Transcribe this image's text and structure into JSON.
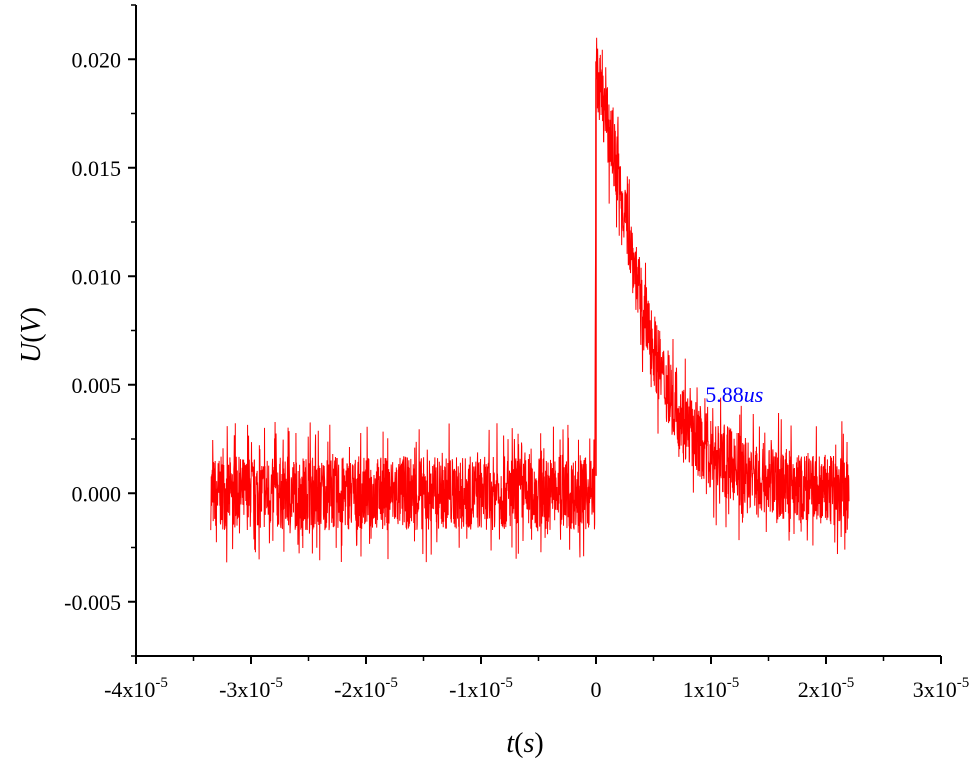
{
  "chart_data": {
    "type": "line",
    "title": "",
    "xlabel": {
      "var": "t",
      "unit": "s"
    },
    "ylabel": {
      "var": "U",
      "unit": "V"
    },
    "xlim": [
      -4e-05,
      3e-05
    ],
    "ylim": [
      -0.0075,
      0.0225
    ],
    "grid": false,
    "legend": "none",
    "x_ticks": [
      {
        "mantissa": "-4",
        "exp": "-5",
        "value": -4e-05
      },
      {
        "mantissa": "-3",
        "exp": "-5",
        "value": -3e-05
      },
      {
        "mantissa": "-2",
        "exp": "-5",
        "value": -2e-05
      },
      {
        "mantissa": "-1",
        "exp": "-5",
        "value": -1e-05
      },
      {
        "mantissa": "0",
        "exp": "",
        "value": 0
      },
      {
        "mantissa": "1",
        "exp": "-5",
        "value": 1e-05
      },
      {
        "mantissa": "2",
        "exp": "-5",
        "value": 2e-05
      },
      {
        "mantissa": "3",
        "exp": "-5",
        "value": 3e-05
      }
    ],
    "y_ticks": [
      {
        "label": "0.020",
        "value": 0.02
      },
      {
        "label": "0.015",
        "value": 0.015
      },
      {
        "label": "0.010",
        "value": 0.01
      },
      {
        "label": "0.005",
        "value": 0.005
      },
      {
        "label": "0.000",
        "value": 0.0
      },
      {
        "label": "-0.005",
        "value": -0.005
      }
    ],
    "series": [
      {
        "color": "#ff0000",
        "description_points": [
          {
            "x": -3.35e-05,
            "y": 0.0
          },
          {
            "x": -1e-07,
            "y": 0.0
          },
          {
            "x": 0.0,
            "y": 0.0195
          },
          {
            "x": 2e-06,
            "y": 0.0145
          },
          {
            "x": 4e-06,
            "y": 0.0085
          },
          {
            "x": 6e-06,
            "y": 0.005
          },
          {
            "x": 8e-06,
            "y": 0.003
          },
          {
            "x": 1e-05,
            "y": 0.0018
          },
          {
            "x": 1.4e-05,
            "y": 0.0007
          },
          {
            "x": 1.8e-05,
            "y": 0.0002
          },
          {
            "x": 2.2e-05,
            "y": 0.0
          }
        ],
        "noise_amplitude": 0.0017,
        "noise_spike": 0.0033
      }
    ],
    "annotations": [
      {
        "text_num": "5.88",
        "text_unit": "us",
        "x": 9.5e-06,
        "y": 0.0042,
        "color": "#0000ff"
      }
    ]
  }
}
